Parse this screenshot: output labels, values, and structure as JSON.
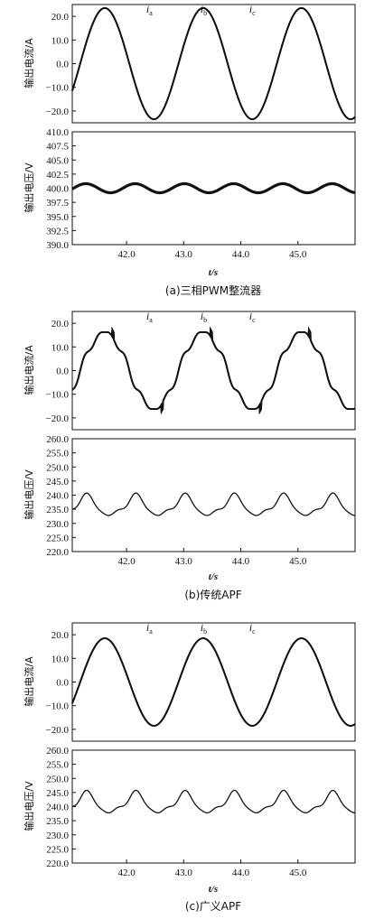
{
  "figure": {
    "panels": [
      {
        "caption": "(a)三相PWM整流器",
        "xlabel": "t/s",
        "current_chart": {
          "ylabel": "输出电流/A",
          "ylim": [
            -25,
            25
          ],
          "yticks": [
            "20.0",
            "10.0",
            "0.0",
            "−10.0",
            "−20.0"
          ],
          "ytick_values": [
            20,
            10,
            0,
            -10,
            -20
          ]
        },
        "voltage_chart": {
          "ylabel": "输出电压/V",
          "ylim": [
            390,
            410
          ],
          "yticks": [
            "410.0",
            "407.5",
            "405.0",
            "402.5",
            "400.0",
            "397.5",
            "395.0",
            "392.5",
            "390.0"
          ],
          "ytick_values": [
            410,
            407.5,
            405,
            402.5,
            400,
            397.5,
            395,
            392.5,
            390
          ]
        }
      },
      {
        "caption": "(b)传统APF",
        "xlabel": "t/s",
        "current_chart": {
          "ylabel": "输出电流/A",
          "ylim": [
            -25,
            25
          ],
          "yticks": [
            "20.0",
            "10.0",
            "0.0",
            "−10.0",
            "−20.0"
          ],
          "ytick_values": [
            20,
            10,
            0,
            -10,
            -20
          ]
        },
        "voltage_chart": {
          "ylabel": "输出电压/V",
          "ylim": [
            220,
            260
          ],
          "yticks": [
            "260.0",
            "255.0",
            "250.0",
            "245.0",
            "240.0",
            "235.0",
            "230.0",
            "225.0",
            "220.0"
          ],
          "ytick_values": [
            260,
            255,
            250,
            245,
            240,
            235,
            230,
            225,
            220
          ]
        }
      },
      {
        "caption": "(c)广义APF",
        "xlabel": "t/s",
        "current_chart": {
          "ylabel": "输出电流/A",
          "ylim": [
            -25,
            25
          ],
          "yticks": [
            "20.0",
            "10.0",
            "0.0",
            "−10.0",
            "−20.0"
          ],
          "ytick_values": [
            20,
            10,
            0,
            -10,
            -20
          ]
        },
        "voltage_chart": {
          "ylabel": "输出电压/V",
          "ylim": [
            220,
            260
          ],
          "yticks": [
            "260.0",
            "255.0",
            "250.0",
            "245.0",
            "240.0",
            "235.0",
            "230.0",
            "225.0",
            "220.0"
          ],
          "ytick_values": [
            260,
            255,
            250,
            245,
            240,
            235,
            230,
            225,
            220
          ]
        }
      }
    ]
  },
  "chart_data": [
    {
      "type": "line",
      "panel": "a-current",
      "xlim": [
        41.05,
        46.0
      ],
      "ylim": [
        -25,
        25
      ],
      "ylabel": "输出电流/A",
      "series": [
        {
          "name": "ia",
          "label": "i",
          "sub": "a",
          "amplitude": 23.5,
          "frequency": 0.581,
          "peak_at": 41.62,
          "distortion": 0
        },
        {
          "name": "ib",
          "label": "i",
          "sub": "b",
          "amplitude": 23.5,
          "frequency": 0.581,
          "peak_at": 43.34,
          "distortion": 0
        },
        {
          "name": "ic",
          "label": "i",
          "sub": "c",
          "amplitude": 23.5,
          "frequency": 0.581,
          "peak_at": 45.06,
          "distortion": 0
        }
      ],
      "label_x": [
        42.4,
        43.35,
        44.2
      ]
    },
    {
      "type": "line",
      "panel": "a-voltage",
      "xlim": [
        41.05,
        46.0
      ],
      "ylim": [
        390,
        410
      ],
      "ylabel": "输出电压/V",
      "series": [
        {
          "name": "voltage",
          "mean": 400.0,
          "amplitude": 0.8,
          "frequency": 1.16,
          "peak_at": 42.15,
          "shape": "sine"
        }
      ]
    },
    {
      "type": "line",
      "panel": "b-current",
      "xlim": [
        41.05,
        46.0
      ],
      "ylim": [
        -25,
        25
      ],
      "ylabel": "输出电流/A",
      "series": [
        {
          "name": "ia",
          "label": "i",
          "sub": "a",
          "amplitude": 17.5,
          "frequency": 0.581,
          "peak_at": 41.62,
          "distortion": 1
        },
        {
          "name": "ib",
          "label": "i",
          "sub": "b",
          "amplitude": 17.5,
          "frequency": 0.581,
          "peak_at": 43.34,
          "distortion": 1
        },
        {
          "name": "ic",
          "label": "i",
          "sub": "c",
          "amplitude": 17.5,
          "frequency": 0.581,
          "peak_at": 45.06,
          "distortion": 1
        }
      ],
      "label_x": [
        42.4,
        43.35,
        44.2
      ]
    },
    {
      "type": "line",
      "panel": "b-voltage",
      "xlim": [
        41.05,
        46.0
      ],
      "ylim": [
        220,
        260
      ],
      "ylabel": "输出电压/V",
      "series": [
        {
          "name": "voltage",
          "mean": 236.0,
          "amplitude": 4.0,
          "frequency": 1.16,
          "peak_at": 42.15,
          "shape": "ripple"
        }
      ]
    },
    {
      "type": "line",
      "panel": "c-current",
      "xlim": [
        41.05,
        46.0
      ],
      "ylim": [
        -25,
        25
      ],
      "ylabel": "输出电流/A",
      "series": [
        {
          "name": "ia",
          "label": "i",
          "sub": "a",
          "amplitude": 18.5,
          "frequency": 0.581,
          "peak_at": 41.62,
          "distortion": 0
        },
        {
          "name": "ib",
          "label": "i",
          "sub": "b",
          "amplitude": 18.5,
          "frequency": 0.581,
          "peak_at": 43.34,
          "distortion": 0
        },
        {
          "name": "ic",
          "label": "i",
          "sub": "c",
          "amplitude": 18.5,
          "frequency": 0.581,
          "peak_at": 45.06,
          "distortion": 0
        }
      ],
      "label_x": [
        42.4,
        43.35,
        44.2
      ]
    },
    {
      "type": "line",
      "panel": "c-voltage",
      "xlim": [
        41.05,
        46.0
      ],
      "ylim": [
        220,
        260
      ],
      "ylabel": "输出电压/V",
      "series": [
        {
          "name": "voltage",
          "mean": 241.0,
          "amplitude": 4.0,
          "frequency": 1.16,
          "peak_at": 42.15,
          "shape": "ripple"
        }
      ]
    }
  ],
  "xticks": [
    "42.0",
    "43.0",
    "44.0",
    "45.0"
  ],
  "xtick_values": [
    42.0,
    43.0,
    44.0,
    45.0
  ]
}
